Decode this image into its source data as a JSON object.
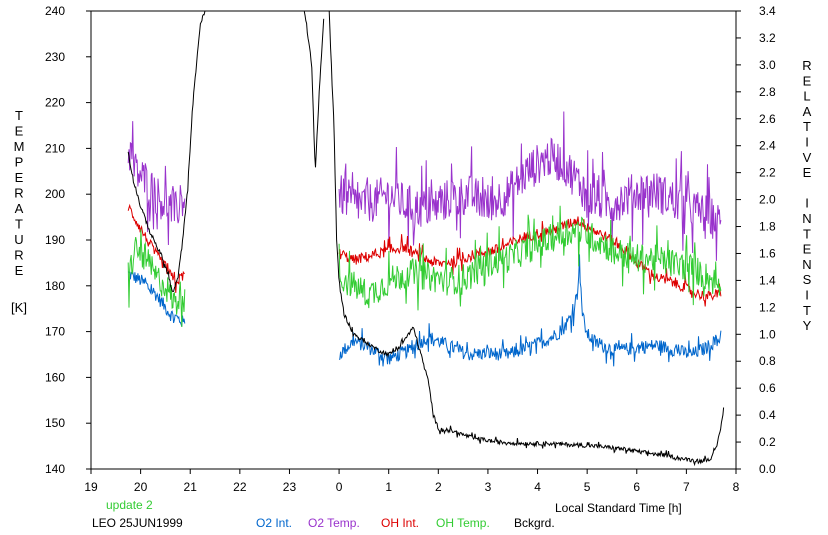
{
  "chart_data": {
    "type": "line",
    "xlabel": "Local Standard Time [h]",
    "x_ticks": [
      "19",
      "20",
      "21",
      "22",
      "23",
      "0",
      "1",
      "2",
      "3",
      "4",
      "5",
      "6",
      "7",
      "8"
    ],
    "xlim": [
      19,
      32
    ],
    "left_axis": {
      "label_letters": [
        "T",
        "E",
        "M",
        "P",
        "E",
        "R",
        "A",
        "T",
        "U",
        "R",
        "E"
      ],
      "unit": "[K]",
      "ylim": [
        140,
        240
      ],
      "ticks": [
        "140",
        "150",
        "160",
        "170",
        "180",
        "190",
        "200",
        "210",
        "220",
        "230",
        "240"
      ]
    },
    "right_axis": {
      "label_words": [
        [
          "R",
          "E",
          "L",
          "A",
          "T",
          "I",
          "V",
          "E"
        ],
        [
          "I",
          "N",
          "T",
          "E",
          "N",
          "S",
          "I",
          "T",
          "Y"
        ]
      ],
      "ylim": [
        0.0,
        3.4
      ],
      "ticks": [
        "0.0",
        "0.2",
        "0.4",
        "0.6",
        "0.8",
        "1.0",
        "1.2",
        "1.4",
        "1.6",
        "1.8",
        "2.0",
        "2.2",
        "2.4",
        "2.6",
        "2.8",
        "3.0",
        "3.2",
        "3.4"
      ]
    },
    "annotation": "update 2",
    "station_date": "LEO 25JUN1999",
    "grid": false,
    "legend_placement": "bottom",
    "series": [
      {
        "name": "O2 Int.",
        "axis": "right",
        "color": "#0066cc",
        "noise": 0.05,
        "segments": [
          [
            [
              19.75,
              1.45
            ],
            [
              20.0,
              1.4
            ],
            [
              20.3,
              1.3
            ],
            [
              20.6,
              1.15
            ],
            [
              20.9,
              1.08
            ]
          ],
          [
            [
              24.0,
              0.85
            ],
            [
              24.3,
              0.95
            ],
            [
              24.6,
              0.9
            ],
            [
              25.0,
              0.82
            ],
            [
              25.4,
              0.88
            ],
            [
              25.8,
              0.98
            ],
            [
              26.0,
              0.95
            ],
            [
              26.3,
              0.9
            ],
            [
              26.6,
              0.85
            ],
            [
              27.0,
              0.86
            ],
            [
              27.4,
              0.85
            ],
            [
              27.8,
              0.9
            ],
            [
              28.2,
              0.96
            ],
            [
              28.5,
              1.03
            ],
            [
              28.7,
              1.15
            ],
            [
              28.8,
              1.3
            ],
            [
              28.85,
              1.58
            ],
            [
              28.9,
              1.15
            ],
            [
              29.0,
              1.0
            ],
            [
              29.2,
              0.93
            ],
            [
              29.6,
              0.88
            ],
            [
              30.0,
              0.9
            ],
            [
              30.4,
              0.92
            ],
            [
              30.8,
              0.88
            ],
            [
              31.1,
              0.85
            ],
            [
              31.4,
              0.9
            ],
            [
              31.7,
              0.98
            ]
          ]
        ]
      },
      {
        "name": "O2 Temp.",
        "axis": "left",
        "color": "#9933cc",
        "noise": 4.5,
        "segments": [
          [
            [
              19.75,
              210
            ],
            [
              19.9,
              205
            ],
            [
              20.1,
              203
            ],
            [
              20.3,
              200
            ],
            [
              20.5,
              198
            ],
            [
              20.7,
              196
            ],
            [
              20.9,
              200
            ]
          ],
          [
            [
              24.0,
              200
            ],
            [
              24.3,
              198
            ],
            [
              24.6,
              198
            ],
            [
              25.0,
              200
            ],
            [
              25.3,
              198
            ],
            [
              25.6,
              197
            ],
            [
              25.9,
              197
            ],
            [
              26.2,
              199
            ],
            [
              26.6,
              200
            ],
            [
              27.0,
              198
            ],
            [
              27.4,
              200
            ],
            [
              27.8,
              205
            ],
            [
              28.2,
              208
            ],
            [
              28.5,
              207
            ],
            [
              28.8,
              203
            ],
            [
              29.1,
              199
            ],
            [
              29.5,
              198
            ],
            [
              29.9,
              200
            ],
            [
              30.3,
              201
            ],
            [
              30.7,
              199
            ],
            [
              31.1,
              197
            ],
            [
              31.5,
              195
            ],
            [
              31.7,
              193
            ]
          ]
        ]
      },
      {
        "name": "OH Int.",
        "axis": "right",
        "color": "#dd0000",
        "noise": 0.04,
        "segments": [
          [
            [
              19.75,
              1.95
            ],
            [
              19.9,
              1.85
            ],
            [
              20.1,
              1.72
            ],
            [
              20.3,
              1.6
            ],
            [
              20.5,
              1.5
            ],
            [
              20.7,
              1.38
            ],
            [
              20.9,
              1.45
            ]
          ],
          [
            [
              24.0,
              1.6
            ],
            [
              24.3,
              1.55
            ],
            [
              24.6,
              1.58
            ],
            [
              25.0,
              1.62
            ],
            [
              25.3,
              1.65
            ],
            [
              25.6,
              1.58
            ],
            [
              26.0,
              1.52
            ],
            [
              26.4,
              1.55
            ],
            [
              26.8,
              1.6
            ],
            [
              27.2,
              1.63
            ],
            [
              27.6,
              1.7
            ],
            [
              28.0,
              1.75
            ],
            [
              28.4,
              1.78
            ],
            [
              28.8,
              1.85
            ],
            [
              29.1,
              1.78
            ],
            [
              29.4,
              1.72
            ],
            [
              29.8,
              1.62
            ],
            [
              30.1,
              1.5
            ],
            [
              30.4,
              1.42
            ],
            [
              30.8,
              1.38
            ],
            [
              31.1,
              1.32
            ],
            [
              31.4,
              1.28
            ],
            [
              31.7,
              1.3
            ]
          ]
        ]
      },
      {
        "name": "OH Temp.",
        "axis": "left",
        "color": "#33cc33",
        "noise": 3.2,
        "segments": [
          [
            [
              19.75,
              182
            ],
            [
              19.9,
              188
            ],
            [
              20.1,
              186
            ],
            [
              20.3,
              182
            ],
            [
              20.5,
              180
            ],
            [
              20.7,
              176
            ],
            [
              20.9,
              180
            ]
          ],
          [
            [
              24.0,
              182
            ],
            [
              24.3,
              180
            ],
            [
              24.6,
              178
            ],
            [
              25.0,
              181
            ],
            [
              25.4,
              183
            ],
            [
              25.8,
              182
            ],
            [
              26.2,
              181
            ],
            [
              26.6,
              182
            ],
            [
              27.0,
              185
            ],
            [
              27.4,
              186
            ],
            [
              27.8,
              188
            ],
            [
              28.2,
              190
            ],
            [
              28.6,
              192
            ],
            [
              28.9,
              192
            ],
            [
              29.2,
              190
            ],
            [
              29.5,
              188
            ],
            [
              29.9,
              186
            ],
            [
              30.3,
              186
            ],
            [
              30.7,
              185
            ],
            [
              31.1,
              184
            ],
            [
              31.4,
              182
            ],
            [
              31.7,
              180
            ]
          ]
        ]
      },
      {
        "name": "Bckgrd.",
        "axis": "right",
        "color": "#000000",
        "noise": 0.015,
        "segments": [
          [
            [
              19.75,
              2.35
            ],
            [
              19.85,
              2.15
            ],
            [
              20.0,
              1.95
            ],
            [
              20.2,
              1.75
            ],
            [
              20.4,
              1.6
            ],
            [
              20.55,
              1.45
            ],
            [
              20.65,
              1.3
            ],
            [
              20.75,
              1.42
            ],
            [
              20.85,
              1.7
            ],
            [
              20.95,
              2.1
            ],
            [
              21.05,
              2.7
            ],
            [
              21.2,
              3.3
            ],
            [
              21.3,
              3.4
            ]
          ],
          [
            [
              23.3,
              3.4
            ],
            [
              23.45,
              3.0
            ],
            [
              23.52,
              2.2
            ],
            [
              23.6,
              2.8
            ],
            [
              23.7,
              3.4
            ]
          ],
          [
            [
              23.8,
              3.4
            ],
            [
              23.9,
              2.5
            ],
            [
              23.95,
              1.7
            ],
            [
              24.0,
              1.4
            ],
            [
              24.1,
              1.15
            ],
            [
              24.3,
              1.0
            ],
            [
              24.5,
              0.95
            ],
            [
              24.8,
              0.88
            ],
            [
              25.0,
              0.85
            ],
            [
              25.2,
              0.9
            ],
            [
              25.4,
              1.0
            ],
            [
              25.5,
              1.05
            ],
            [
              25.65,
              0.85
            ],
            [
              25.8,
              0.65
            ],
            [
              25.9,
              0.4
            ],
            [
              26.0,
              0.3
            ],
            [
              26.3,
              0.28
            ],
            [
              26.7,
              0.23
            ],
            [
              27.2,
              0.2
            ],
            [
              27.7,
              0.19
            ],
            [
              28.2,
              0.19
            ],
            [
              28.7,
              0.18
            ],
            [
              29.2,
              0.17
            ],
            [
              29.7,
              0.15
            ],
            [
              30.2,
              0.12
            ],
            [
              30.6,
              0.1
            ],
            [
              31.0,
              0.07
            ],
            [
              31.3,
              0.06
            ],
            [
              31.5,
              0.08
            ],
            [
              31.6,
              0.15
            ],
            [
              31.7,
              0.32
            ],
            [
              31.75,
              0.45
            ]
          ]
        ]
      }
    ]
  }
}
